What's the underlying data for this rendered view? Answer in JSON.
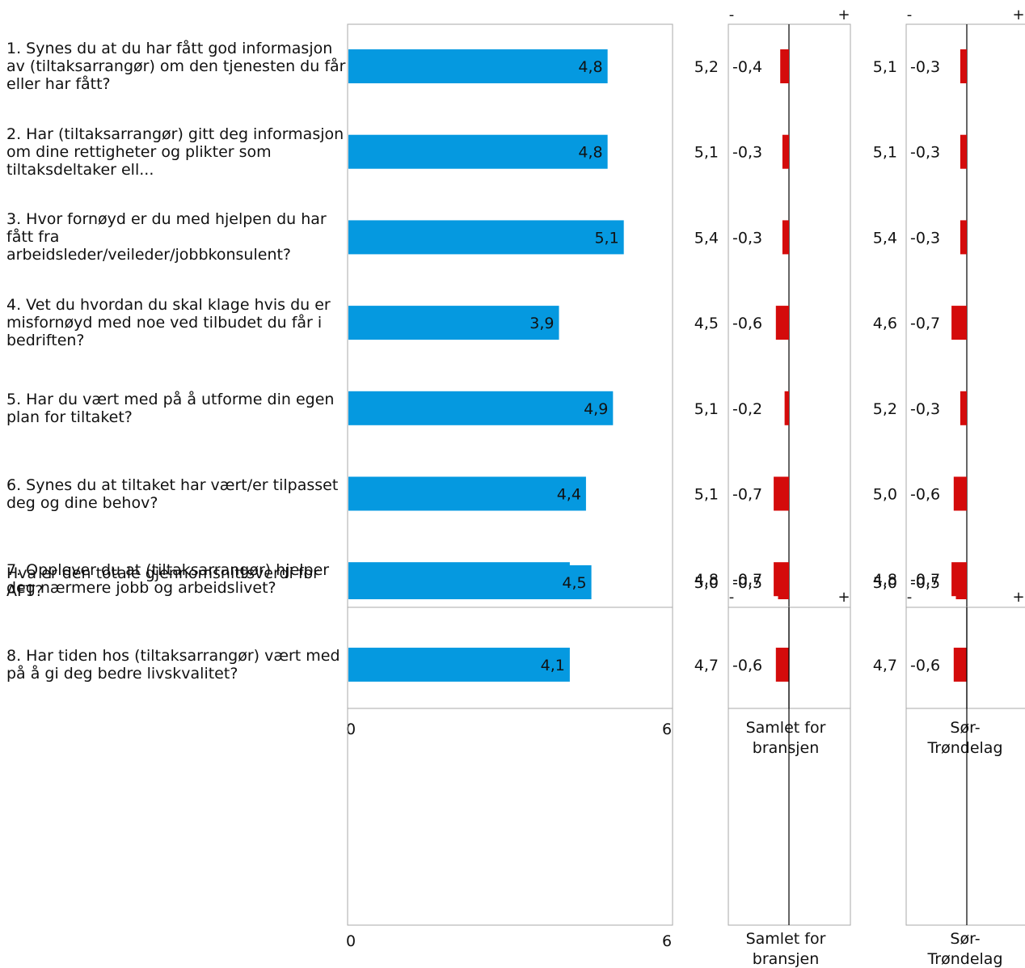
{
  "colors": {
    "bar": "#0599e0",
    "diff": "#d40b0b",
    "frame": "#aaaaaa",
    "axis": "#000000"
  },
  "chart_data": [
    {
      "type": "bar",
      "orientation": "horizontal",
      "xlim": [
        0,
        6
      ],
      "tick_labels": [
        "0",
        "6"
      ],
      "comparison_labels": [
        "Samlet for bransjen",
        "Sør-Trøndelag"
      ],
      "diff_axis_labels": [
        "-",
        "+"
      ],
      "questions": [
        {
          "label": "1.  Synes du at du har fått god informasjon av (tiltaksarrangør) om den tjenesten du får eller har fått?",
          "value": 4.8,
          "value_label": "4,8",
          "bransjen": "5,2",
          "bransjen_diff": -0.4,
          "bransjen_diff_label": "-0,4",
          "region": "5,1",
          "region_diff": -0.3,
          "region_diff_label": "-0,3"
        },
        {
          "label": "2.  Har (tiltaksarrangør) gitt deg informasjon om dine rettigheter og plikter som tiltaksdeltaker ell...",
          "value": 4.8,
          "value_label": "4,8",
          "bransjen": "5,1",
          "bransjen_diff": -0.3,
          "bransjen_diff_label": "-0,3",
          "region": "5,1",
          "region_diff": -0.3,
          "region_diff_label": "-0,3"
        },
        {
          "label": "3.  Hvor fornøyd er du med hjelpen du har fått fra arbeidsleder/veileder/jobbkonsulent?",
          "value": 5.1,
          "value_label": "5,1",
          "bransjen": "5,4",
          "bransjen_diff": -0.3,
          "bransjen_diff_label": "-0,3",
          "region": "5,4",
          "region_diff": -0.3,
          "region_diff_label": "-0,3"
        },
        {
          "label": "4.  Vet du hvordan du skal klage hvis du er misfornøyd med noe ved tilbudet du får i bedriften?",
          "value": 3.9,
          "value_label": "3,9",
          "bransjen": "4,5",
          "bransjen_diff": -0.6,
          "bransjen_diff_label": "-0,6",
          "region": "4,6",
          "region_diff": -0.7,
          "region_diff_label": "-0,7"
        },
        {
          "label": "5.  Har du vært med på å utforme din egen plan for tiltaket?",
          "value": 4.9,
          "value_label": "4,9",
          "bransjen": "5,1",
          "bransjen_diff": -0.2,
          "bransjen_diff_label": "-0,2",
          "region": "5,2",
          "region_diff": -0.3,
          "region_diff_label": "-0,3"
        },
        {
          "label": "6.  Synes du at tiltaket har vært/er tilpasset deg og dine behov?",
          "value": 4.4,
          "value_label": "4,4",
          "bransjen": "5,1",
          "bransjen_diff": -0.7,
          "bransjen_diff_label": "-0,7",
          "region": "5,0",
          "region_diff": -0.6,
          "region_diff_label": "-0,6"
        },
        {
          "label": "7.  Opplever du at (tiltaksarrangør) hjelper deg nærmere jobb og arbeidslivet?",
          "value": 4.1,
          "value_label": "4,1",
          "bransjen": "4,8",
          "bransjen_diff": -0.7,
          "bransjen_diff_label": "-0,7",
          "region": "4,8",
          "region_diff": -0.7,
          "region_diff_label": "-0,7"
        },
        {
          "label": "8.  Har tiden hos (tiltaksarrangør) vært med på å gi deg bedre livskvalitet?",
          "value": 4.1,
          "value_label": "4,1",
          "bransjen": "4,7",
          "bransjen_diff": -0.6,
          "bransjen_diff_label": "-0,6",
          "region": "4,7",
          "region_diff": -0.6,
          "region_diff_label": "-0,6"
        }
      ]
    },
    {
      "type": "bar",
      "orientation": "horizontal",
      "xlim": [
        0,
        6
      ],
      "tick_labels": [
        "0",
        "6"
      ],
      "comparison_labels": [
        "Samlet for bransjen",
        "Sør-Trøndelag"
      ],
      "diff_axis_labels": [
        "-",
        "+"
      ],
      "questions": [
        {
          "label": "Hva er den totale gjennomsnittsverdi for AFT?",
          "value": 4.5,
          "value_label": "4,5",
          "bransjen": "5,0",
          "bransjen_diff": -0.5,
          "bransjen_diff_label": "-0,5",
          "region": "5,0",
          "region_diff": -0.5,
          "region_diff_label": "-0,5"
        }
      ]
    }
  ]
}
